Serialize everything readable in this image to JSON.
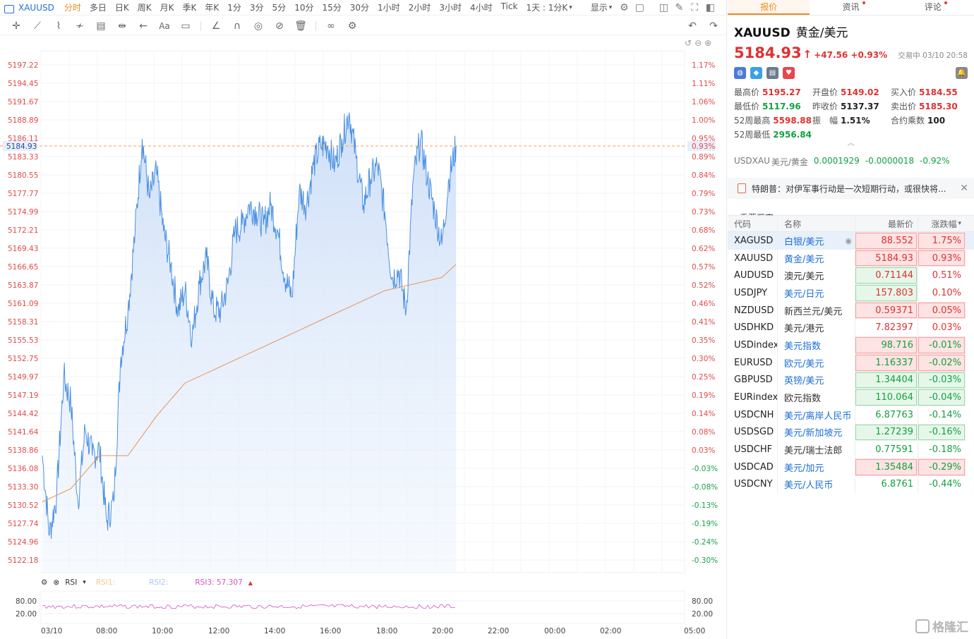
{
  "topbar": {
    "symbol": "XAUUSD",
    "timeframes": [
      "分时",
      "多日",
      "日K",
      "周K",
      "月K",
      "季K",
      "年K",
      "1分",
      "3分",
      "5分",
      "10分",
      "15分",
      "30分",
      "1小时",
      "2小时",
      "3小时",
      "4小时",
      "Tick"
    ],
    "active_timeframe": "分时",
    "range_select": "1天 : 1分K",
    "display_menu": "显示"
  },
  "rsi": {
    "label": "RSI",
    "rsi1": "RSI1:",
    "rsi2": "RSI2:",
    "rsi3": "RSI3: 57.307",
    "levels": [
      "80.00",
      "20.00"
    ]
  },
  "chart_data": {
    "type": "line",
    "title": "",
    "current_price": 5184.93,
    "current_pct": "0.93%",
    "price_ticks": [
      5197.22,
      5194.45,
      5191.67,
      5188.89,
      5186.11,
      5183.33,
      5180.55,
      5177.77,
      5174.99,
      5172.21,
      5169.43,
      5166.65,
      5163.87,
      5161.09,
      5158.31,
      5155.53,
      5152.75,
      5149.97,
      5147.19,
      5144.42,
      5141.64,
      5138.86,
      5136.08,
      5133.3,
      5130.52,
      5127.74,
      5124.96,
      5122.18
    ],
    "pct_ticks": [
      "1.17%",
      "1.11%",
      "1.06%",
      "1.00%",
      "0.95%",
      "0.89%",
      "0.84%",
      "0.79%",
      "0.73%",
      "0.68%",
      "0.62%",
      "0.57%",
      "0.52%",
      "0.46%",
      "0.41%",
      "0.35%",
      "0.30%",
      "0.25%",
      "0.19%",
      "0.14%",
      "0.08%",
      "0.03%",
      "-0.03%",
      "-0.08%",
      "-0.13%",
      "-0.19%",
      "-0.24%",
      "-0.30%"
    ],
    "x_ticks": [
      "03/10",
      "08:00",
      "10:00",
      "12:00",
      "14:00",
      "16:00",
      "18:00",
      "20:00",
      "22:00",
      "00:00",
      "02:00",
      "05:00"
    ],
    "ylim": [
      5122.18,
      5197.22
    ],
    "series": [
      {
        "name": "price",
        "x": [
          "06:00",
          "06:15",
          "06:30",
          "06:45",
          "07:00",
          "07:15",
          "07:30",
          "07:45",
          "08:00",
          "08:15",
          "08:30",
          "08:45",
          "09:00",
          "09:15",
          "09:30",
          "09:45",
          "10:00",
          "10:15",
          "10:30",
          "10:45",
          "11:00",
          "11:15",
          "11:30",
          "11:45",
          "12:00",
          "12:15",
          "12:30",
          "12:45",
          "13:00",
          "13:15",
          "13:30",
          "13:45",
          "14:00",
          "14:15",
          "14:30",
          "14:45",
          "15:00",
          "15:15",
          "15:30",
          "15:45",
          "16:00",
          "16:15",
          "16:30",
          "16:45",
          "17:00",
          "17:15",
          "17:30",
          "17:45",
          "18:00",
          "18:15",
          "18:30",
          "18:45",
          "19:00",
          "19:15",
          "19:30",
          "19:45",
          "20:00",
          "20:15",
          "20:30"
        ],
        "values": [
          5138,
          5126,
          5132,
          5150,
          5146,
          5131,
          5142,
          5138,
          5139,
          5128,
          5131,
          5153,
          5160,
          5172,
          5186,
          5177,
          5181,
          5172,
          5167,
          5160,
          5163,
          5156,
          5164,
          5168,
          5160,
          5160,
          5164,
          5172,
          5173,
          5176,
          5175,
          5173,
          5176,
          5172,
          5165,
          5162,
          5178,
          5176,
          5182,
          5185,
          5185,
          5182,
          5186,
          5190,
          5183,
          5176,
          5180,
          5182,
          5175,
          5165,
          5166,
          5160,
          5180,
          5186,
          5180,
          5175,
          5170,
          5180,
          5184.93
        ]
      },
      {
        "name": "average",
        "x": [
          "06:00",
          "07:00",
          "08:00",
          "09:00",
          "10:00",
          "11:00",
          "12:00",
          "13:00",
          "14:00",
          "15:00",
          "16:00",
          "17:00",
          "18:00",
          "19:00",
          "20:00",
          "20:30"
        ],
        "values": [
          5131,
          5133,
          5138,
          5138,
          5144,
          5149,
          5151,
          5153,
          5155,
          5157,
          5159,
          5161,
          5163,
          5164,
          5165,
          5167
        ]
      }
    ]
  },
  "quote": {
    "symbol": "XAUUSD",
    "name_cn": "黄金/美元",
    "price": "5184.93",
    "change": "+47.56 +0.93%",
    "status": "交易中 03/10 20:58",
    "stats": [
      {
        "label": "最高价",
        "value": "5195.27",
        "color": "red"
      },
      {
        "label": "开盘价",
        "value": "5149.02",
        "color": "red"
      },
      {
        "label": "买入价",
        "value": "5184.55",
        "color": "red"
      },
      {
        "label": "最低价",
        "value": "5117.96",
        "color": "green"
      },
      {
        "label": "昨收价",
        "value": "5137.37",
        "color": "dark"
      },
      {
        "label": "卖出价",
        "value": "5185.30",
        "color": "red"
      },
      {
        "label": "52周最高",
        "value": "5598.88",
        "color": "red"
      },
      {
        "label": "振　幅",
        "value": "1.51%",
        "color": "dark"
      },
      {
        "label": "合约乘数",
        "value": "100",
        "color": "dark"
      },
      {
        "label": "52周最低",
        "value": "2956.84",
        "color": "green"
      }
    ],
    "related": {
      "code": "USDXAU",
      "name": "美元/黄金",
      "price": "0.0001929",
      "change": "-0.0000018",
      "pct": "-0.92%"
    },
    "news": "特朗普：对伊军事行动是一次短期行动，或很快将..."
  },
  "tabs": [
    "报价",
    "资讯",
    "评论"
  ],
  "fx": {
    "title": "重要汇率",
    "headers": [
      "代码",
      "名称",
      "最新价",
      "涨跌幅"
    ],
    "rows": [
      {
        "code": "XAGUSD",
        "name": "白银/美元",
        "price": "88.552",
        "pct": "1.75%",
        "dir": "up",
        "box": "r",
        "link": true,
        "sel": true
      },
      {
        "code": "XAUUSD",
        "name": "黄金/美元",
        "price": "5184.93",
        "pct": "0.93%",
        "dir": "up",
        "box": "r",
        "link": true
      },
      {
        "code": "AUDUSD",
        "name": "澳元/美元",
        "price": "0.71144",
        "pct": "0.51%",
        "dir": "up",
        "box": "g",
        "link": false
      },
      {
        "code": "USDJPY",
        "name": "美元/日元",
        "price": "157.803",
        "pct": "0.10%",
        "dir": "up",
        "box": "g",
        "link": true
      },
      {
        "code": "NZDUSD",
        "name": "新西兰元/美元",
        "price": "0.59371",
        "pct": "0.05%",
        "dir": "up",
        "box": "r",
        "link": false
      },
      {
        "code": "USDHKD",
        "name": "美元/港元",
        "price": "7.82397",
        "pct": "0.03%",
        "dir": "up",
        "box": "",
        "link": false
      },
      {
        "code": "USDindex",
        "name": "美元指数",
        "price": "98.716",
        "pct": "-0.01%",
        "dir": "down",
        "box": "r",
        "link": true
      },
      {
        "code": "EURUSD",
        "name": "欧元/美元",
        "price": "1.16337",
        "pct": "-0.02%",
        "dir": "down",
        "box": "r",
        "link": true
      },
      {
        "code": "GBPUSD",
        "name": "英镑/美元",
        "price": "1.34404",
        "pct": "-0.03%",
        "dir": "down",
        "box": "g",
        "link": true
      },
      {
        "code": "EURindex",
        "name": "欧元指数",
        "price": "110.064",
        "pct": "-0.04%",
        "dir": "down",
        "box": "g",
        "link": false
      },
      {
        "code": "USDCNH",
        "name": "美元/离岸人民币",
        "price": "6.87763",
        "pct": "-0.14%",
        "dir": "down",
        "box": "",
        "link": true
      },
      {
        "code": "USDSGD",
        "name": "美元/新加坡元",
        "price": "1.27239",
        "pct": "-0.16%",
        "dir": "down",
        "box": "g",
        "link": true
      },
      {
        "code": "USDCHF",
        "name": "美元/瑞士法郎",
        "price": "0.77591",
        "pct": "-0.18%",
        "dir": "down",
        "box": "",
        "link": false
      },
      {
        "code": "USDCAD",
        "name": "美元/加元",
        "price": "1.35484",
        "pct": "-0.29%",
        "dir": "down",
        "box": "r",
        "link": true
      },
      {
        "code": "USDCNY",
        "name": "美元/人民币",
        "price": "6.8761",
        "pct": "-0.44%",
        "dir": "down",
        "box": "",
        "link": true
      }
    ]
  },
  "watermark": "格隆汇",
  "colors": {
    "up": "#e03131",
    "down": "#12a140",
    "line": "#4a90e2",
    "avg": "#e8935a",
    "accent": "#f08a1c"
  }
}
